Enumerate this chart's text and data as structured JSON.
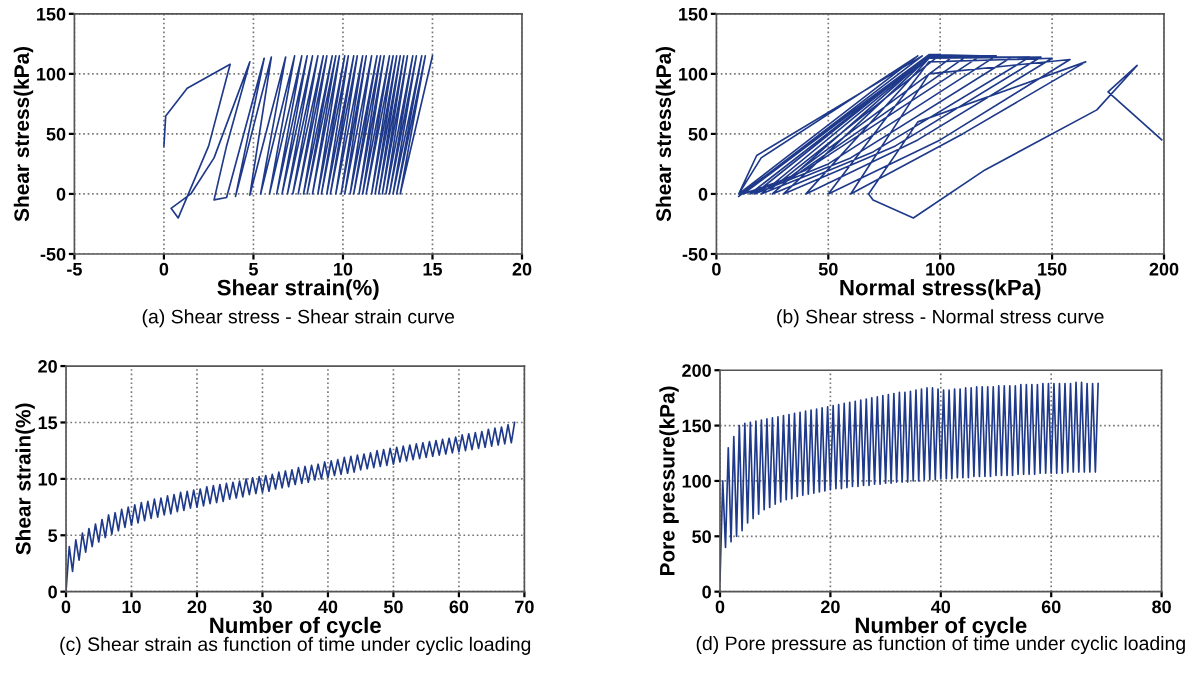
{
  "chart_data": [
    {
      "type": "line",
      "title": "(a) Shear stress - Shear strain curve",
      "xlabel": "Shear strain(%)",
      "ylabel": "Shear stress(kPa)",
      "xlim": [
        -5,
        20
      ],
      "ylim": [
        -50,
        150
      ],
      "xticks": [
        -5,
        0,
        5,
        10,
        15,
        20
      ],
      "yticks": [
        -50,
        0,
        50,
        100,
        150
      ],
      "grid": true,
      "series": [
        {
          "color": "#1f3a8a",
          "x": [
            0,
            0.1,
            1.3,
            3.7,
            2.5,
            0.8,
            0.4,
            1.5,
            2.8,
            4.8,
            3.5,
            2.8,
            3.5,
            5.6,
            4.0,
            6.0,
            4.8,
            6.8,
            5.4,
            7.3,
            5.9,
            7.7,
            6.3,
            8.0,
            6.6,
            8.3,
            6.9,
            8.6,
            7.2,
            8.9,
            7.5,
            9.1,
            7.8,
            9.4,
            8.0,
            9.6,
            8.3,
            9.8,
            8.6,
            10.1,
            8.8,
            10.3,
            9.1,
            10.6,
            9.3,
            10.8,
            9.6,
            11.1,
            9.9,
            11.3,
            10.1,
            11.6,
            10.4,
            11.9,
            10.6,
            12.1,
            10.9,
            12.3,
            11.1,
            12.6,
            11.3,
            12.8,
            11.6,
            13.0,
            11.8,
            13.2,
            12.0,
            13.4,
            12.2,
            13.6,
            12.4,
            13.9,
            12.6,
            14.1,
            12.8,
            14.4,
            13.0,
            14.6,
            13.2,
            15.0
          ],
          "values": [
            40,
            65,
            88,
            108,
            40,
            -20,
            -12,
            0,
            30,
            110,
            40,
            -5,
            -3,
            113,
            -2,
            114,
            -1,
            114,
            0,
            115,
            0,
            115,
            0,
            115,
            0,
            115,
            0,
            115,
            0,
            115,
            0,
            115,
            0,
            115,
            0,
            115,
            0,
            115,
            0,
            115,
            0,
            115,
            0,
            115,
            0,
            115,
            0,
            115,
            0,
            115,
            0,
            115,
            0,
            115,
            0,
            115,
            0,
            115,
            0,
            115,
            0,
            115,
            0,
            115,
            0,
            115,
            0,
            115,
            0,
            115,
            0,
            115,
            0,
            115,
            0,
            115,
            0,
            115,
            0,
            115
          ]
        }
      ]
    },
    {
      "type": "line",
      "title": "(b) Shear stress - Normal stress curve",
      "xlabel": "Normal stress(kPa)",
      "ylabel": "Shear stress(kPa)",
      "xlim": [
        0,
        200
      ],
      "ylim": [
        -50,
        150
      ],
      "xticks": [
        0,
        50,
        100,
        150,
        200
      ],
      "yticks": [
        -50,
        0,
        50,
        100,
        150
      ],
      "grid": true,
      "series": [
        {
          "color": "#1f3a8a",
          "x": [
            199,
            175,
            188,
            170,
            120,
            88,
            70,
            68,
            90,
            165,
            110,
            60,
            95,
            158,
            100,
            50,
            95,
            150,
            90,
            40,
            95,
            145,
            80,
            30,
            95,
            140,
            70,
            25,
            95,
            132,
            60,
            20,
            95,
            125,
            50,
            17,
            95,
            118,
            40,
            15,
            95,
            112,
            35,
            12,
            95,
            106,
            30,
            11,
            95,
            100,
            25,
            10,
            20,
            90,
            10,
            18,
            92,
            10
          ],
          "values": [
            45,
            85,
            107,
            70,
            20,
            -20,
            -5,
            0,
            60,
            110,
            50,
            0,
            100,
            112,
            45,
            0,
            110,
            113,
            45,
            0,
            113,
            114,
            40,
            0,
            114,
            114,
            35,
            0,
            115,
            114,
            30,
            0,
            115,
            115,
            25,
            0,
            116,
            115,
            20,
            0,
            116,
            115,
            15,
            0,
            116,
            115,
            10,
            0,
            116,
            116,
            5,
            0,
            30,
            115,
            0,
            32,
            115,
            -2
          ]
        }
      ]
    },
    {
      "type": "line",
      "title": "(c) Shear strain as function of time under cyclic loading",
      "xlabel": "Number of cycle",
      "ylabel": "Shear strain(%)",
      "xlim": [
        0,
        70
      ],
      "ylim": [
        0,
        20
      ],
      "xticks": [
        0,
        10,
        20,
        30,
        40,
        50,
        60,
        70
      ],
      "yticks": [
        0,
        5,
        10,
        15,
        20
      ],
      "grid": true,
      "series": [
        {
          "color": "#1f3a8a",
          "x": [
            0,
            0.5,
            1,
            1.5,
            2,
            2.5,
            3,
            3.5,
            4,
            4.5,
            5,
            5.5,
            6,
            6.5,
            7,
            7.5,
            8,
            8.5,
            9,
            9.5,
            10,
            10.5,
            11,
            11.5,
            12,
            12.5,
            13,
            13.5,
            14,
            14.5,
            15,
            15.5,
            16,
            16.5,
            17,
            17.5,
            18,
            18.5,
            19,
            19.5,
            20,
            20.5,
            21,
            21.5,
            22,
            22.5,
            23,
            23.5,
            24,
            24.5,
            25,
            25.5,
            26,
            26.5,
            27,
            27.5,
            28,
            28.5,
            29,
            29.5,
            30,
            30.5,
            31,
            31.5,
            32,
            32.5,
            33,
            33.5,
            34,
            34.5,
            35,
            35.5,
            36,
            36.5,
            37,
            37.5,
            38,
            38.5,
            39,
            39.5,
            40,
            40.5,
            41,
            41.5,
            42,
            42.5,
            43,
            43.5,
            44,
            44.5,
            45,
            45.5,
            46,
            46.5,
            47,
            47.5,
            48,
            48.5,
            49,
            49.5,
            50,
            50.5,
            51,
            51.5,
            52,
            52.5,
            53,
            53.5,
            54,
            54.5,
            55,
            55.5,
            56,
            56.5,
            57,
            57.5,
            58,
            58.5,
            59,
            59.5,
            60,
            60.5,
            61,
            61.5,
            62,
            62.5,
            63,
            63.5,
            64,
            64.5,
            65,
            65.5,
            66,
            66.5,
            67,
            67.5,
            68,
            68.5
          ],
          "values": [
            0.0,
            4.0,
            1.8,
            4.6,
            2.8,
            5.2,
            3.5,
            5.6,
            4.0,
            6.0,
            4.4,
            6.4,
            4.8,
            6.8,
            5.1,
            7.0,
            5.4,
            7.3,
            5.7,
            7.5,
            5.9,
            7.7,
            6.1,
            7.9,
            6.3,
            8.0,
            6.5,
            8.2,
            6.6,
            8.3,
            6.8,
            8.5,
            6.9,
            8.6,
            7.1,
            8.8,
            7.2,
            8.9,
            7.4,
            9.0,
            7.5,
            9.1,
            7.6,
            9.3,
            7.8,
            9.4,
            7.9,
            9.5,
            8.0,
            9.6,
            8.2,
            9.7,
            8.3,
            9.8,
            8.4,
            10.0,
            8.6,
            10.1,
            8.7,
            10.2,
            8.8,
            10.3,
            8.9,
            10.4,
            9.1,
            10.6,
            9.2,
            10.7,
            9.3,
            10.8,
            9.5,
            11.0,
            9.6,
            11.1,
            9.7,
            11.2,
            9.9,
            11.3,
            10.0,
            11.5,
            10.1,
            11.6,
            10.3,
            11.7,
            10.4,
            11.9,
            10.5,
            12.0,
            10.6,
            12.1,
            10.8,
            12.2,
            10.9,
            12.3,
            11.0,
            12.5,
            11.1,
            12.6,
            11.2,
            12.7,
            11.3,
            12.8,
            11.5,
            12.9,
            11.6,
            13.0,
            11.7,
            13.1,
            11.8,
            13.2,
            11.9,
            13.3,
            12.0,
            13.4,
            12.1,
            13.5,
            12.2,
            13.6,
            12.3,
            13.7,
            12.4,
            13.9,
            12.5,
            14.0,
            12.6,
            14.1,
            12.7,
            14.2,
            12.8,
            14.4,
            12.9,
            14.5,
            13.0,
            14.6,
            13.1,
            14.8,
            13.2,
            15.0
          ]
        }
      ]
    },
    {
      "type": "line",
      "title": "(d) Pore pressure as function of time under cyclic loading",
      "xlabel": "Number of cycle",
      "ylabel": "Pore pressure(kPa)",
      "xlim": [
        0,
        80
      ],
      "ylim": [
        0,
        200
      ],
      "xticks": [
        0,
        20,
        40,
        60,
        80
      ],
      "yticks": [
        0,
        50,
        100,
        150,
        200
      ],
      "grid": true,
      "series": [
        {
          "color": "#1f3a8a",
          "x": [
            0,
            0.5,
            1,
            1.5,
            2,
            2.5,
            3,
            3.5,
            4,
            4.5,
            5,
            5.5,
            6,
            6.5,
            7,
            7.5,
            8,
            8.5,
            9,
            9.5,
            10,
            10.5,
            11,
            11.5,
            12,
            12.5,
            13,
            13.5,
            14,
            14.5,
            15,
            15.5,
            16,
            16.5,
            17,
            17.5,
            18,
            18.5,
            19,
            19.5,
            20,
            20.5,
            21,
            21.5,
            22,
            22.5,
            23,
            23.5,
            24,
            24.5,
            25,
            25.5,
            26,
            26.5,
            27,
            27.5,
            28,
            28.5,
            29,
            29.5,
            30,
            30.5,
            31,
            31.5,
            32,
            32.5,
            33,
            33.5,
            34,
            34.5,
            35,
            35.5,
            36,
            36.5,
            37,
            37.5,
            38,
            38.5,
            39,
            39.5,
            40,
            40.5,
            41,
            41.5,
            42,
            42.5,
            43,
            43.5,
            44,
            44.5,
            45,
            45.5,
            46,
            46.5,
            47,
            47.5,
            48,
            48.5,
            49,
            49.5,
            50,
            50.5,
            51,
            51.5,
            52,
            52.5,
            53,
            53.5,
            54,
            54.5,
            55,
            55.5,
            56,
            56.5,
            57,
            57.5,
            58,
            58.5,
            59,
            59.5,
            60,
            60.5,
            61,
            61.5,
            62,
            62.5,
            63,
            63.5,
            64,
            64.5,
            65,
            65.5,
            66,
            66.5,
            67,
            67.5,
            68,
            68.5
          ],
          "values": [
            10,
            100,
            40,
            130,
            45,
            140,
            50,
            150,
            55,
            152,
            62,
            153,
            66,
            154,
            70,
            155,
            74,
            156,
            76,
            157,
            79,
            158,
            81,
            159,
            83,
            160,
            84,
            161,
            86,
            162,
            87,
            163,
            88,
            164,
            89,
            165,
            90,
            166,
            91,
            167,
            92,
            168,
            93,
            169,
            93,
            170,
            94,
            171,
            95,
            172,
            95,
            173,
            96,
            174,
            96,
            175,
            97,
            176,
            97,
            177,
            98,
            178,
            98,
            179,
            99,
            180,
            99,
            180,
            99,
            181,
            100,
            182,
            100,
            183,
            101,
            184,
            101,
            184,
            101,
            183,
            102,
            182,
            102,
            182,
            102,
            183,
            103,
            183,
            103,
            184,
            103,
            184,
            104,
            185,
            104,
            185,
            104,
            185,
            104,
            185,
            105,
            186,
            105,
            186,
            105,
            186,
            105,
            186,
            106,
            187,
            106,
            187,
            106,
            187,
            106,
            187,
            107,
            188,
            107,
            188,
            107,
            188,
            107,
            188,
            107,
            188,
            108,
            188,
            108,
            189,
            108,
            189,
            108,
            188,
            108,
            188,
            108,
            188
          ]
        }
      ]
    }
  ]
}
